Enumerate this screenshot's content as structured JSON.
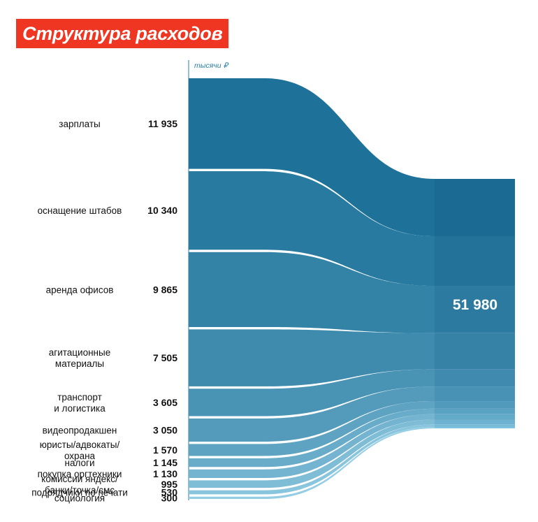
{
  "chart_data": {
    "type": "sankey",
    "title": "Структура расходов",
    "unit": "тысячи ₽",
    "total_label": "51 980",
    "total": 51980,
    "colors": {
      "title_bg": "#ee3622",
      "flow_dark": "#1e7299",
      "flow_light": "#94cde4",
      "total_dark": "#1a6a93",
      "total_light": "#7fc2dd"
    },
    "categories": [
      {
        "name": [
          "зарплаты"
        ],
        "value": 11935,
        "value_label": "11 935"
      },
      {
        "name": [
          "оснащение штабов"
        ],
        "value": 10340,
        "value_label": "10 340"
      },
      {
        "name": [
          "аренда офисов"
        ],
        "value": 9865,
        "value_label": "9 865"
      },
      {
        "name": [
          "агитационные",
          "материалы"
        ],
        "value": 7505,
        "value_label": "7 505"
      },
      {
        "name": [
          "транспорт",
          "и логистика"
        ],
        "value": 3605,
        "value_label": "3 605"
      },
      {
        "name": [
          "видеопродакшен"
        ],
        "value": 3050,
        "value_label": "3 050"
      },
      {
        "name": [
          "юристы/адвокаты/",
          "охрана"
        ],
        "value": 1570,
        "value_label": "1 570"
      },
      {
        "name": [
          "налоги"
        ],
        "value": 1145,
        "value_label": "1 145"
      },
      {
        "name": [
          "покупка оргтехники"
        ],
        "value": 1130,
        "value_label": "1 130"
      },
      {
        "name": [
          "комиссии яндекс/",
          "банки/точка/смс"
        ],
        "value": 995,
        "value_label": "995"
      },
      {
        "name": [
          "подрядчики по печати"
        ],
        "value": 530,
        "value_label": "530"
      },
      {
        "name": [
          "социология"
        ],
        "value": 300,
        "value_label": "300"
      }
    ]
  }
}
